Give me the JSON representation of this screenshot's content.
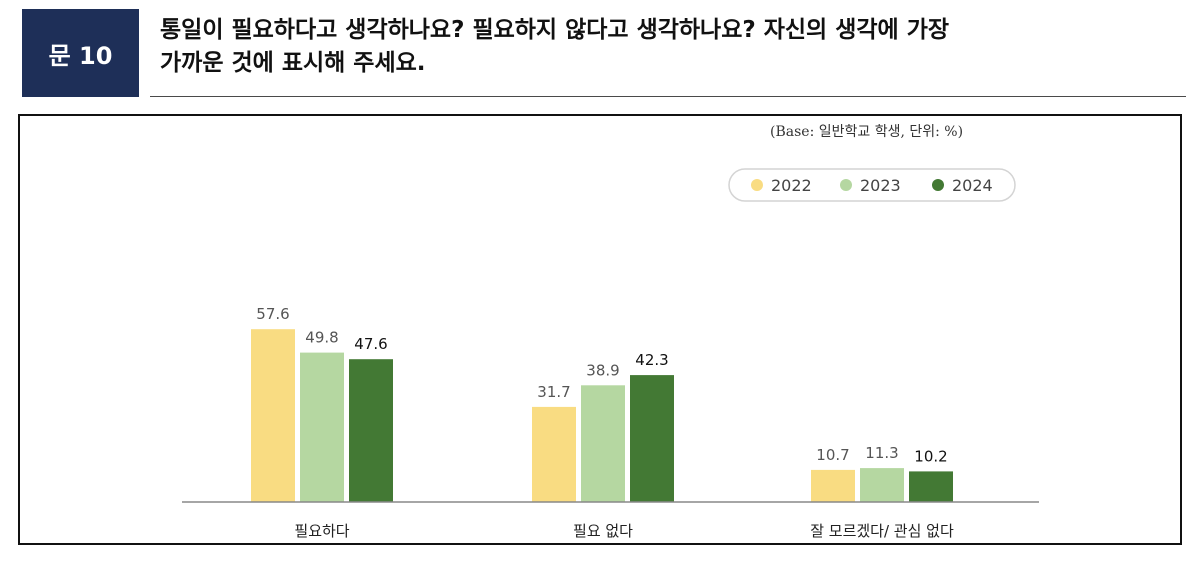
{
  "question": {
    "number_label": "문 10",
    "text_line1": "통일이 필요하다고 생각하나요? 필요하지 않다고 생각하나요? 자신의 생각에 가장",
    "text_line2": "가까운 것에 표시해 주세요."
  },
  "chart_note": "(Base: 일반학교 학생, 단위: %)",
  "colors": {
    "2022": "#f9dc82",
    "2023": "#b5d7a1",
    "2024": "#437934",
    "badge": "#1e2f58"
  },
  "chart_data": {
    "type": "bar",
    "categories": [
      "필요하다",
      "필요 없다",
      "잘 모르겠다/ 관심 없다"
    ],
    "series": [
      {
        "name": "2022",
        "values": [
          57.6,
          31.7,
          10.7
        ]
      },
      {
        "name": "2023",
        "values": [
          49.8,
          38.9,
          11.3
        ]
      },
      {
        "name": "2024",
        "values": [
          47.6,
          42.3,
          10.2
        ]
      }
    ],
    "unit": "%",
    "legend_position": "top-right",
    "grid": false
  }
}
